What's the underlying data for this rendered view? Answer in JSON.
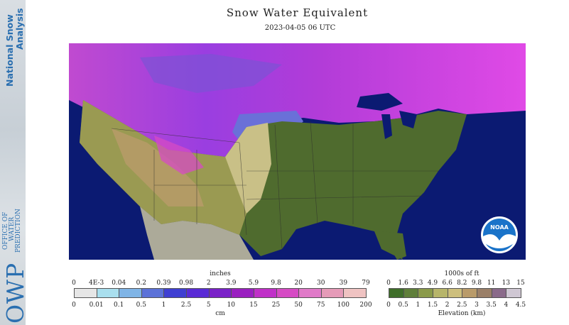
{
  "sidebar": {
    "title_line1": "National Snow",
    "title_line2": "Analysis",
    "org_lines": [
      "OFFICE OF",
      "WATER",
      "PREDICTION"
    ],
    "org_abbrev": "OWP"
  },
  "header": {
    "title": "Snow Water Equivalent",
    "datetime": "2023-04-05 06 UTC"
  },
  "map": {
    "ocean_color": "#0b1a72",
    "logo_text": "NOAA"
  },
  "swe_legend": {
    "unit_top": "inches",
    "unit_bottom": "cm",
    "inch_ticks": [
      "0",
      "4E-3",
      "0.04",
      "0.2",
      "0.39",
      "0.98",
      "2",
      "3.9",
      "5.9",
      "9.8",
      "20",
      "30",
      "39",
      "79"
    ],
    "cm_ticks": [
      "0",
      "0.01",
      "0.1",
      "0.5",
      "1",
      "2.5",
      "5",
      "10",
      "15",
      "25",
      "50",
      "75",
      "100",
      "200"
    ],
    "colors": [
      "#e6e6e6",
      "#a9dfee",
      "#7fb4e6",
      "#5c72d8",
      "#3f3fd2",
      "#5a2bd6",
      "#7a22c8",
      "#9a20c0",
      "#c030c8",
      "#d64bc4",
      "#e07ac8",
      "#e59bb8",
      "#efc3c2"
    ]
  },
  "elev_legend": {
    "unit_top": "1000s of ft",
    "unit_bottom": "Elevation (km)",
    "ft_ticks": [
      "0",
      "1.6",
      "3.3",
      "4.9",
      "6.6",
      "8.2",
      "9.8",
      "11",
      "13",
      "15"
    ],
    "km_ticks": [
      "0",
      "0.5",
      "1",
      "1.5",
      "2",
      "2.5",
      "3",
      "3.5",
      "4",
      "4.5"
    ],
    "colors": [
      "#3f6e2a",
      "#5f7f3a",
      "#8a9a4a",
      "#b7b56a",
      "#cdbf7d",
      "#b99b6a",
      "#9a7f68",
      "#8a6a8a",
      "#cfc7d3"
    ]
  }
}
